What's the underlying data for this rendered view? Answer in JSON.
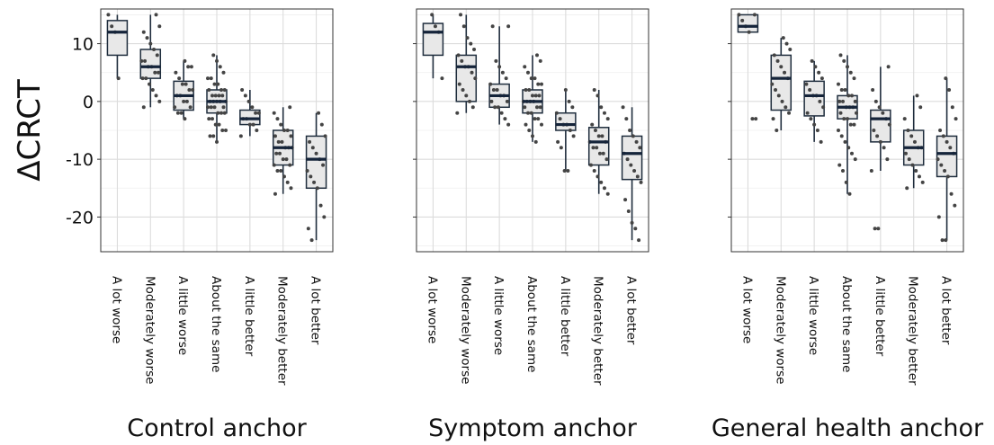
{
  "y_axis_label": "ΔCRCT",
  "chart_data": [
    {
      "type": "box",
      "title": "Control anchor",
      "ylabel": "ΔCRCT",
      "ylim": [
        -26,
        16
      ],
      "yticks": [
        -20,
        -10,
        0,
        10
      ],
      "grid": true,
      "categories": [
        "A lot worse",
        "Moderately worse",
        "A little worse",
        "About the same",
        "A little better",
        "Moderately better",
        "A lot better"
      ],
      "boxes": [
        {
          "min": 4,
          "q1": 8,
          "median": 12,
          "q3": 14,
          "max": 15,
          "points": [
            15,
            13,
            12,
            4
          ]
        },
        {
          "min": -1,
          "q1": 4,
          "median": 6,
          "q3": 9,
          "max": 15,
          "points": [
            15,
            13,
            12,
            11,
            10,
            9,
            8,
            7,
            7,
            6,
            6,
            5,
            5,
            4,
            4,
            3,
            2,
            1,
            0,
            -1
          ]
        },
        {
          "min": -3,
          "q1": -1.5,
          "median": 1,
          "q3": 3.5,
          "max": 7,
          "points": [
            7,
            6,
            6,
            5,
            4,
            3,
            3,
            2,
            2,
            1,
            1,
            0,
            0,
            -1,
            -1,
            -2,
            -2,
            -3
          ]
        },
        {
          "min": -7,
          "q1": -2,
          "median": 0,
          "q3": 2,
          "max": 8,
          "points": [
            8,
            7,
            6,
            5,
            4,
            4,
            3,
            3,
            2,
            2,
            2,
            1,
            1,
            1,
            1,
            0,
            0,
            0,
            0,
            0,
            -1,
            -1,
            -1,
            -1,
            -2,
            -2,
            -2,
            -3,
            -3,
            -4,
            -4,
            -5,
            -5,
            -6,
            -6,
            -7
          ]
        },
        {
          "min": -6,
          "q1": -4,
          "median": -3,
          "q3": -1.5,
          "max": 2,
          "points": [
            2,
            1,
            0,
            -1,
            -2,
            -2,
            -3,
            -3,
            -4,
            -4,
            -5,
            -6
          ]
        },
        {
          "min": -16,
          "q1": -11,
          "median": -8,
          "q3": -5,
          "max": -1,
          "points": [
            -1,
            -2,
            -3,
            -4,
            -5,
            -5,
            -6,
            -6,
            -7,
            -7,
            -8,
            -8,
            -8,
            -9,
            -9,
            -10,
            -10,
            -11,
            -11,
            -12,
            -12,
            -13,
            -14,
            -15,
            -16
          ]
        },
        {
          "min": -24,
          "q1": -15,
          "median": -10,
          "q3": -6,
          "max": -2,
          "points": [
            -2,
            -4,
            -6,
            -7,
            -8,
            -9,
            -10,
            -11,
            -12,
            -13,
            -14,
            -15,
            -18,
            -20,
            -22,
            -24
          ]
        }
      ]
    },
    {
      "type": "box",
      "title": "Symptom anchor",
      "ylabel": "",
      "ylim": [
        -26,
        16
      ],
      "yticks": [
        -20,
        -10,
        0,
        10
      ],
      "grid": true,
      "categories": [
        "A lot worse",
        "Moderately worse",
        "A little worse",
        "About the same",
        "A little better",
        "Moderately better",
        "A lot better"
      ],
      "boxes": [
        {
          "min": 4,
          "q1": 8,
          "median": 12,
          "q3": 13.5,
          "max": 15,
          "points": [
            15,
            13,
            12,
            4
          ]
        },
        {
          "min": -2,
          "q1": 0,
          "median": 6,
          "q3": 8,
          "max": 15,
          "points": [
            15,
            13,
            11,
            10,
            9,
            8,
            7,
            6,
            6,
            5,
            4,
            3,
            2,
            1,
            0,
            -1,
            -2
          ]
        },
        {
          "min": -4,
          "q1": -1,
          "median": 1,
          "q3": 3,
          "max": 13,
          "points": [
            13,
            13,
            7,
            6,
            5,
            4,
            3,
            2,
            2,
            1,
            1,
            0,
            0,
            -1,
            -1,
            -2,
            -3,
            -4
          ]
        },
        {
          "min": -7,
          "q1": -2,
          "median": 0,
          "q3": 2,
          "max": 8,
          "points": [
            8,
            7,
            6,
            5,
            4,
            4,
            3,
            3,
            2,
            2,
            1,
            1,
            1,
            0,
            0,
            0,
            0,
            -1,
            -1,
            -1,
            -2,
            -2,
            -3,
            -3,
            -4,
            -4,
            -5,
            -6,
            -7
          ]
        },
        {
          "min": -12,
          "q1": -5,
          "median": -4,
          "q3": -2,
          "max": 2,
          "points": [
            2,
            0,
            -1,
            -2,
            -3,
            -4,
            -4,
            -5,
            -6,
            -7,
            -8,
            -12,
            -12
          ]
        },
        {
          "min": -16,
          "q1": -11,
          "median": -7,
          "q3": -4.5,
          "max": 2,
          "points": [
            2,
            1,
            -1,
            -2,
            -3,
            -4,
            -5,
            -6,
            -6,
            -7,
            -7,
            -8,
            -8,
            -9,
            -9,
            -10,
            -11,
            -12,
            -13,
            -14,
            -15,
            -16
          ]
        },
        {
          "min": -24,
          "q1": -13.5,
          "median": -9,
          "q3": -6,
          "max": -1,
          "points": [
            -1,
            -3,
            -5,
            -6,
            -7,
            -8,
            -9,
            -10,
            -11,
            -12,
            -13,
            -14,
            -17,
            -19,
            -21,
            -22,
            -24
          ]
        }
      ]
    },
    {
      "type": "box",
      "title": "General health anchor",
      "ylabel": "",
      "ylim": [
        -26,
        16
      ],
      "yticks": [
        -20,
        -10,
        0,
        10
      ],
      "grid": true,
      "categories": [
        "A lot worse",
        "Moderately worse",
        "A little worse",
        "About the same",
        "A little better",
        "Moderately better",
        "A lot better"
      ],
      "boxes": [
        {
          "min": 12,
          "q1": 12,
          "median": 13,
          "q3": 15,
          "max": 15,
          "points": [
            15,
            15,
            14,
            13,
            12,
            -3,
            -3
          ]
        },
        {
          "min": -5,
          "q1": -1.5,
          "median": 4,
          "q3": 8,
          "max": 11,
          "points": [
            11,
            10,
            9,
            8,
            7,
            6,
            5,
            4,
            3,
            2,
            1,
            0,
            -1,
            -2,
            -3,
            -5
          ]
        },
        {
          "min": -7,
          "q1": -2.5,
          "median": 1,
          "q3": 3.5,
          "max": 7,
          "points": [
            7,
            6,
            5,
            4,
            3,
            2,
            1,
            1,
            0,
            -1,
            -2,
            -3,
            -4,
            -5,
            -7
          ]
        },
        {
          "min": -16,
          "q1": -3,
          "median": -1,
          "q3": 1,
          "max": 8,
          "points": [
            8,
            7,
            6,
            5,
            4,
            3,
            2,
            2,
            1,
            1,
            0,
            0,
            0,
            -1,
            -1,
            -1,
            -2,
            -2,
            -3,
            -3,
            -4,
            -4,
            -5,
            -6,
            -7,
            -8,
            -9,
            -10,
            -11,
            -12,
            -14,
            -16
          ]
        },
        {
          "min": -12,
          "q1": -7,
          "median": -3,
          "q3": -1.5,
          "max": 6,
          "points": [
            6,
            2,
            0,
            -1,
            -2,
            -3,
            -4,
            -5,
            -6,
            -7,
            -8,
            -10,
            -12,
            -22,
            -22
          ]
        },
        {
          "min": -15,
          "q1": -11,
          "median": -8,
          "q3": -5,
          "max": 1,
          "points": [
            1,
            -1,
            -3,
            -5,
            -6,
            -7,
            -8,
            -8,
            -9,
            -10,
            -11,
            -12,
            -13,
            -14,
            -15
          ]
        },
        {
          "min": -24,
          "q1": -13,
          "median": -9,
          "q3": -6,
          "max": 4,
          "points": [
            4,
            2,
            -1,
            -3,
            -5,
            -6,
            -7,
            -8,
            -9,
            -10,
            -11,
            -12,
            -13,
            -16,
            -18,
            -20,
            -24,
            -24
          ]
        }
      ]
    }
  ]
}
